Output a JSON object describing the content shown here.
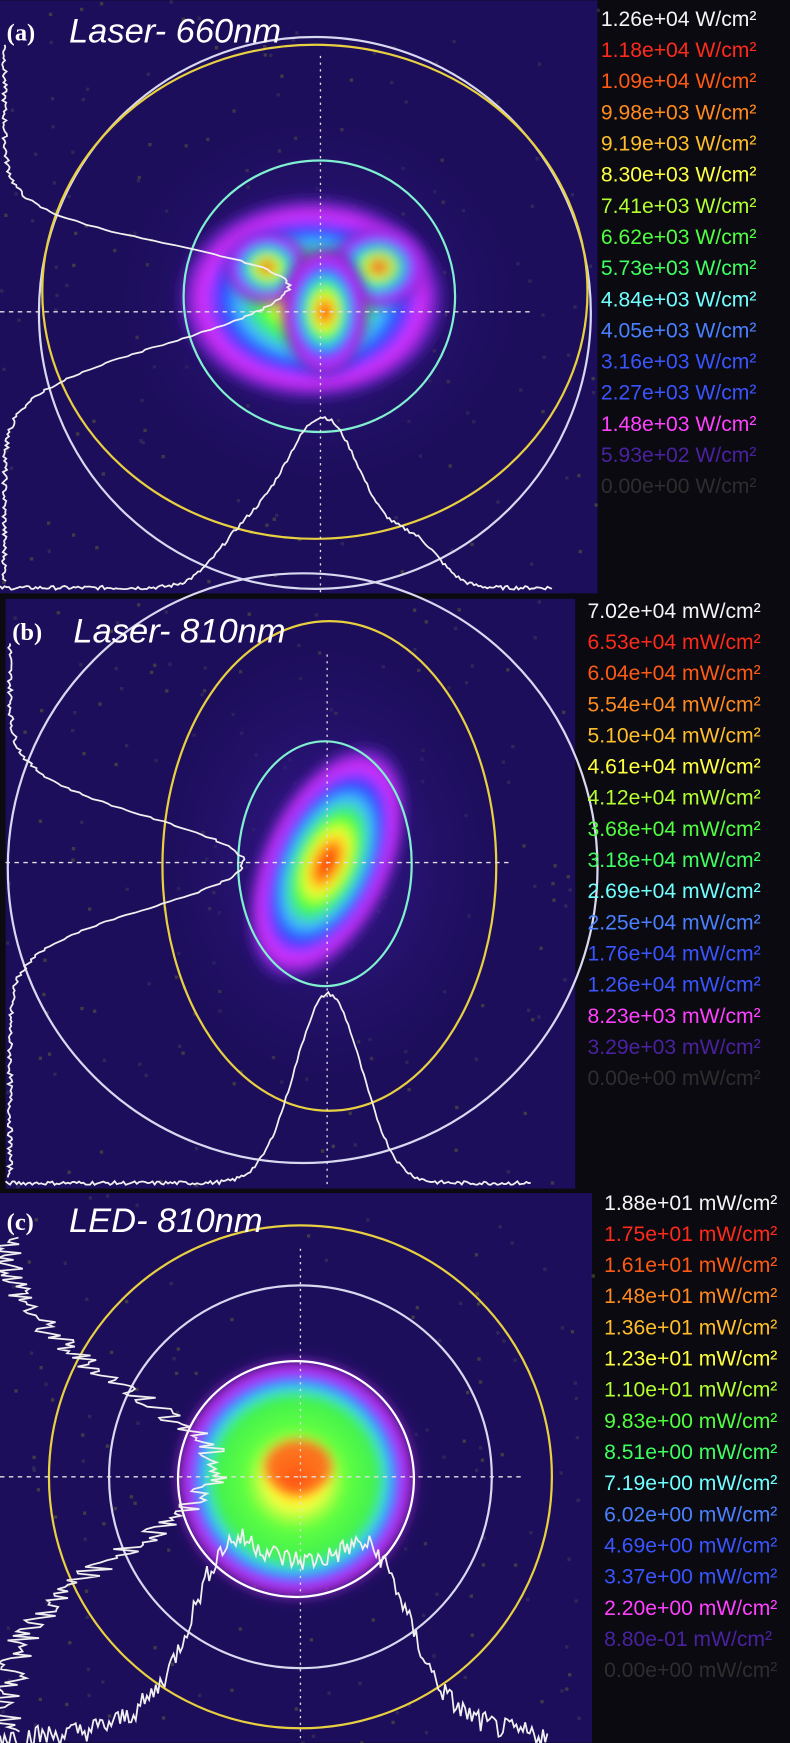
{
  "panels": [
    {
      "label": "(a)",
      "title": "Laser- 660nm",
      "legend": [
        {
          "text": "1.26e+04 W/cm²",
          "color": "#f4f4f4"
        },
        {
          "text": "1.18e+04 W/cm²",
          "color": "#ff2a1a"
        },
        {
          "text": "1.09e+04 W/cm²",
          "color": "#ff5a14"
        },
        {
          "text": "9.98e+03 W/cm²",
          "color": "#ff8a1e"
        },
        {
          "text": "9.19e+03 W/cm²",
          "color": "#ffbe2a"
        },
        {
          "text": "8.30e+03 W/cm²",
          "color": "#ffff40"
        },
        {
          "text": "7.41e+03 W/cm²",
          "color": "#b4ff30"
        },
        {
          "text": "6.62e+03 W/cm²",
          "color": "#50ff40"
        },
        {
          "text": "5.73e+03 W/cm²",
          "color": "#40ff60"
        },
        {
          "text": "4.84e+03 W/cm²",
          "color": "#70ffff"
        },
        {
          "text": "4.05e+03 W/cm²",
          "color": "#4a80ff"
        },
        {
          "text": "3.16e+03 W/cm²",
          "color": "#3a55ff"
        },
        {
          "text": "2.27e+03 W/cm²",
          "color": "#3a55ff"
        },
        {
          "text": "1.48e+03 W/cm²",
          "color": "#ff40ff"
        },
        {
          "text": "5.93e+02 W/cm²",
          "color": "#4a22a0"
        },
        {
          "text": "0.00e+00 W/cm²",
          "color": "#2e2e2e"
        }
      ]
    },
    {
      "label": "(b)",
      "title": "Laser- 810nm",
      "legend": [
        {
          "text": "7.02e+04 mW/cm²",
          "color": "#f4f4f4"
        },
        {
          "text": "6.53e+04 mW/cm²",
          "color": "#ff2a1a"
        },
        {
          "text": "6.04e+04 mW/cm²",
          "color": "#ff5a14"
        },
        {
          "text": "5.54e+04 mW/cm²",
          "color": "#ff8a1e"
        },
        {
          "text": "5.10e+04 mW/cm²",
          "color": "#ffbe2a"
        },
        {
          "text": "4.61e+04 mW/cm²",
          "color": "#ffff40"
        },
        {
          "text": "4.12e+04 mW/cm²",
          "color": "#b4ff30"
        },
        {
          "text": "3.68e+04 mW/cm²",
          "color": "#50ff40"
        },
        {
          "text": "3.18e+04 mW/cm²",
          "color": "#40ff60"
        },
        {
          "text": "2.69e+04 mW/cm²",
          "color": "#70ffff"
        },
        {
          "text": "2.25e+04 mW/cm²",
          "color": "#4a80ff"
        },
        {
          "text": "1.76e+04 mW/cm²",
          "color": "#3a55ff"
        },
        {
          "text": "1.26e+04 mW/cm²",
          "color": "#3a55ff"
        },
        {
          "text": "8.23e+03 mW/cm²",
          "color": "#ff40ff"
        },
        {
          "text": "3.29e+03 mW/cm²",
          "color": "#4a22a0"
        },
        {
          "text": "0.00e+00 mW/cm²",
          "color": "#2e2e2e"
        }
      ]
    },
    {
      "label": "(c)",
      "title": "LED- 810nm",
      "legend": [
        {
          "text": "1.88e+01 mW/cm²",
          "color": "#f4f4f4"
        },
        {
          "text": "1.75e+01 mW/cm²",
          "color": "#ff2a1a"
        },
        {
          "text": "1.61e+01 mW/cm²",
          "color": "#ff5a14"
        },
        {
          "text": "1.48e+01 mW/cm²",
          "color": "#ff8a1e"
        },
        {
          "text": "1.36e+01 mW/cm²",
          "color": "#ffbe2a"
        },
        {
          "text": "1.23e+01 mW/cm²",
          "color": "#ffff40"
        },
        {
          "text": "1.10e+01 mW/cm²",
          "color": "#b4ff30"
        },
        {
          "text": "9.83e+00 mW/cm²",
          "color": "#50ff40"
        },
        {
          "text": "8.51e+00 mW/cm²",
          "color": "#40ff60"
        },
        {
          "text": "7.19e+00 mW/cm²",
          "color": "#70ffff"
        },
        {
          "text": "6.02e+00 mW/cm²",
          "color": "#4a80ff"
        },
        {
          "text": "4.69e+00 mW/cm²",
          "color": "#3a55ff"
        },
        {
          "text": "3.37e+00 mW/cm²",
          "color": "#3a55ff"
        },
        {
          "text": "2.20e+00 mW/cm²",
          "color": "#ff40ff"
        },
        {
          "text": "8.80e-01 mW/cm²",
          "color": "#4a22a0"
        },
        {
          "text": "0.00e+00 mW/cm²",
          "color": "#2e2e2e"
        }
      ]
    }
  ]
}
